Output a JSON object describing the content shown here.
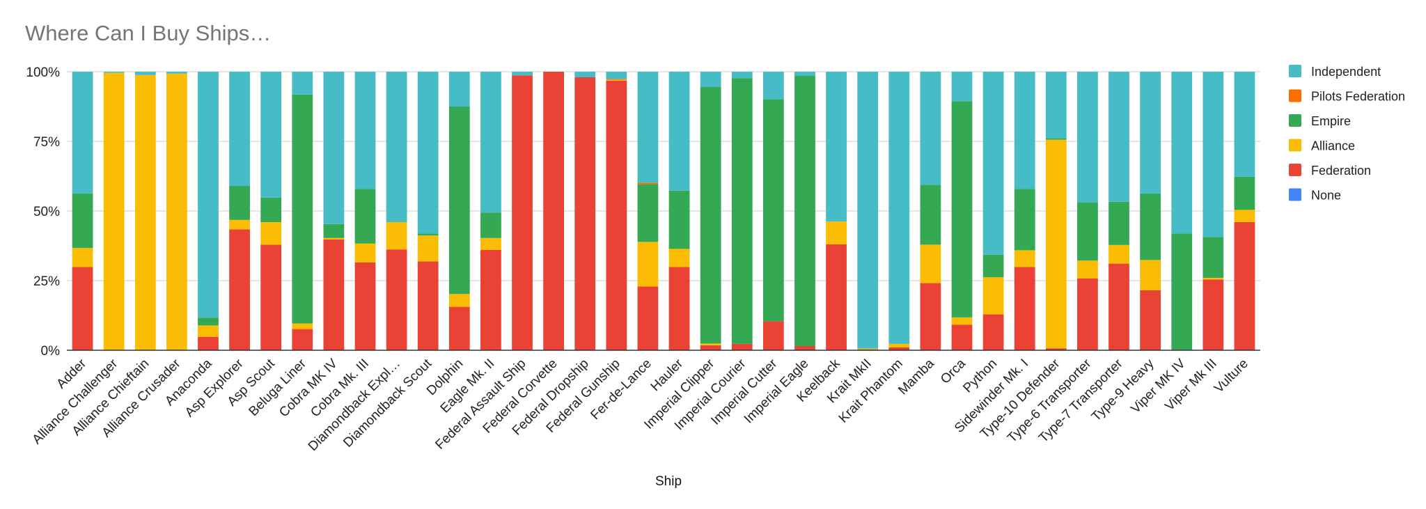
{
  "chart_data": {
    "type": "bar",
    "stacked": "percent",
    "title": "Where Can I Buy Ships…",
    "xlabel": "Ship",
    "ylabel": "",
    "ylim": [
      0,
      100
    ],
    "y_ticks": [
      "0%",
      "25%",
      "50%",
      "75%",
      "100%"
    ],
    "grid": true,
    "legend_position": "right",
    "categories": [
      "Adder",
      "Alliance Challenger",
      "Alliance Chieftain",
      "Alliance Crusader",
      "Anaconda",
      "Asp Explorer",
      "Asp Scout",
      "Beluga Liner",
      "Cobra MK IV",
      "Cobra Mk. III",
      "Diamondback Expl…",
      "Diamondback Scout",
      "Dolphin",
      "Eagle Mk. II",
      "Federal Assault Ship",
      "Federal Corvette",
      "Federal Dropship",
      "Federal Gunship",
      "Fer-de-Lance",
      "Hauler",
      "Imperial Clipper",
      "Imperial Courier",
      "Imperial Cutter",
      "Imperial Eagle",
      "Keelback",
      "Krait MkII",
      "Krait Phantom",
      "Mamba",
      "Orca",
      "Python",
      "Sidewinder Mk. I",
      "Type-10 Defender",
      "Type-6 Transporter",
      "Type-7 Transporter",
      "Type-9 Heavy",
      "Viper MK IV",
      "Viper Mk III",
      "Vulture"
    ],
    "series": [
      {
        "name": "None",
        "color": "#4285f4",
        "values": [
          0,
          0,
          0,
          0,
          0,
          0,
          0,
          0,
          0,
          0,
          0,
          0,
          0,
          0,
          0,
          0,
          0,
          0,
          0,
          0,
          0,
          0,
          0,
          0,
          0,
          0,
          0,
          0,
          0,
          0,
          0,
          0,
          0,
          0,
          0,
          0,
          0,
          0
        ]
      },
      {
        "name": "Federation",
        "color": "#ea4335",
        "values": [
          29.9,
          0,
          0,
          0,
          4.8,
          43.4,
          37.9,
          7.6,
          39.8,
          31.5,
          36.2,
          31.9,
          15.6,
          36.0,
          98.7,
          100,
          98.0,
          96.8,
          22.9,
          29.9,
          1.8,
          2.3,
          10.4,
          1.5,
          38.0,
          0.3,
          1.0,
          24.1,
          9.2,
          12.9,
          29.9,
          0.7,
          25.8,
          31.1,
          21.5,
          0,
          25.4,
          46.0
        ]
      },
      {
        "name": "Alliance",
        "color": "#fbbc04",
        "values": [
          6.8,
          99.6,
          98.8,
          99.3,
          4.1,
          3.4,
          8.1,
          2.0,
          0.5,
          6.8,
          9.8,
          9.3,
          4.6,
          4.3,
          0,
          0,
          0,
          0.3,
          16.0,
          6.5,
          0.6,
          0,
          0,
          0,
          8.2,
          0.3,
          1.3,
          13.8,
          2.6,
          13.3,
          6.0,
          74.9,
          6.4,
          6.7,
          10.9,
          0,
          0.6,
          4.4
        ]
      },
      {
        "name": "Empire",
        "color": "#34a853",
        "values": [
          19.6,
          0,
          0,
          0,
          2.8,
          12.2,
          8.8,
          82.2,
          5.0,
          19.6,
          0,
          0.7,
          67.3,
          9.1,
          0,
          0,
          0,
          0,
          20.7,
          20.9,
          92.1,
          95.4,
          79.7,
          97.0,
          0,
          0,
          0,
          21.5,
          77.6,
          8.1,
          22.0,
          0.5,
          20.9,
          15.5,
          23.9,
          41.9,
          14.7,
          11.9
        ]
      },
      {
        "name": "Pilots Federation",
        "color": "#ff6d01",
        "values": [
          0,
          0,
          0,
          0,
          0,
          0,
          0,
          0,
          0,
          0,
          0,
          0,
          0,
          0,
          0,
          0,
          0,
          0.3,
          0.5,
          0,
          0,
          0,
          0,
          0,
          0,
          0,
          0,
          0,
          0,
          0,
          0,
          0,
          0,
          0,
          0,
          0,
          0,
          0
        ]
      },
      {
        "name": "Independent",
        "color": "#46bdc6",
        "values": [
          43.7,
          0.4,
          1.2,
          0.7,
          88.3,
          41.0,
          45.2,
          8.2,
          54.7,
          42.1,
          54.0,
          58.1,
          12.5,
          50.6,
          1.3,
          0,
          2.0,
          2.6,
          39.9,
          42.7,
          5.5,
          2.3,
          9.9,
          1.5,
          53.8,
          99.4,
          97.7,
          40.6,
          10.6,
          65.7,
          42.1,
          23.9,
          46.9,
          46.7,
          43.7,
          58.1,
          59.3,
          37.7
        ]
      }
    ],
    "legend_order": [
      "Independent",
      "Pilots Federation",
      "Empire",
      "Alliance",
      "Federation",
      "None"
    ]
  },
  "colors": {
    "title": "#757575",
    "grid": "#cccccc",
    "baseline": "#333333"
  }
}
